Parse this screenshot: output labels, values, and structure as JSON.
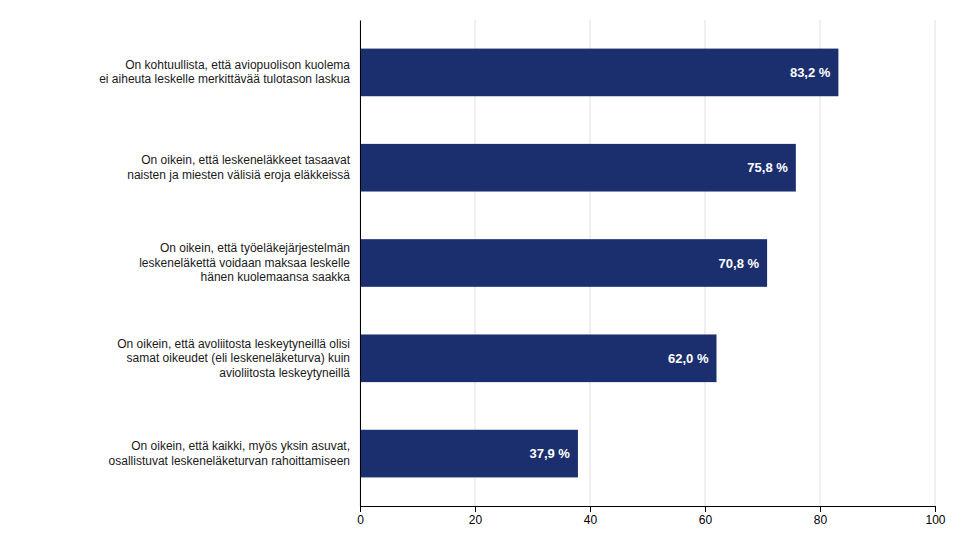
{
  "chart_data": {
    "type": "bar",
    "orientation": "horizontal",
    "categories": [
      "On oikein, että kaikki, myös yksin asuvat,\nosallistuvat leskeneläketurvan rahoittamiseen",
      "On oikein, että avoliitosta leskeytyneillä olisi\nsamat oikeudet (eli leskeneläketurva) kuin\navioliitosta leskeytyneillä",
      "On oikein, että työeläkejärjestelmän\nleskeneläkettä voidaan maksaa leskelle\nhänen kuolemaansa saakka",
      "On oikein, että leskeneläkkeet tasaavat\nnaisten ja miesten välisiä eroja eläkkeissä",
      "On kohtuullista, että aviopuolison kuolema\nei aiheuta leskelle merkittävää tulotason laskua"
    ],
    "values": [
      37.9,
      62.0,
      70.8,
      75.8,
      83.2
    ],
    "value_labels": [
      "37,9 %",
      "62,0 %",
      "70,8 %",
      "75,8 %",
      "83,2 %"
    ],
    "data_labels": true,
    "color": "#1b2f6e",
    "xlim": [
      0,
      100
    ],
    "xticks": [
      0,
      20,
      40,
      60,
      80,
      100
    ],
    "grid": true
  }
}
